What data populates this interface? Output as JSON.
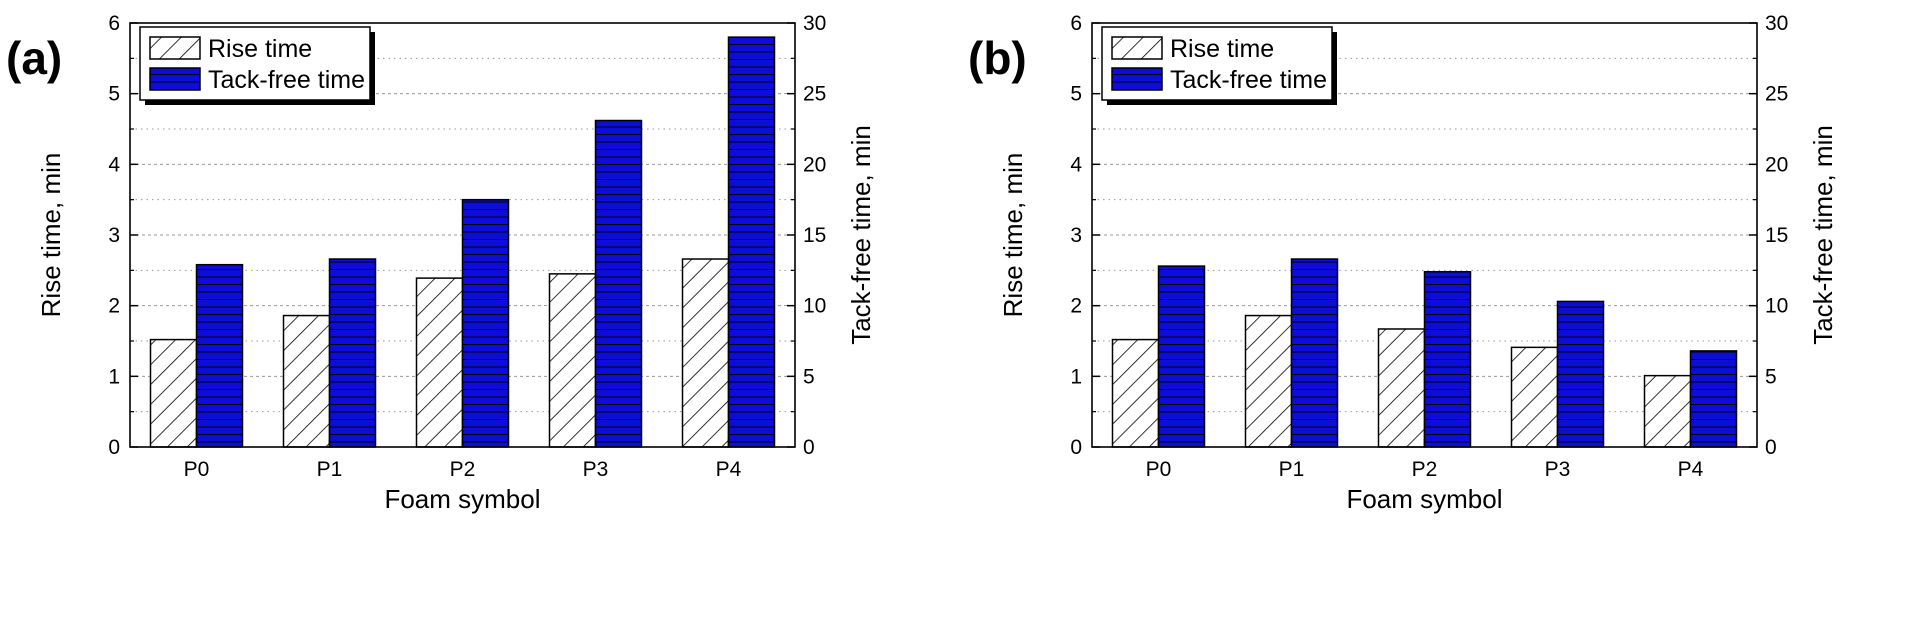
{
  "chart_data": [
    {
      "type": "bar",
      "panel_label": "(a)",
      "categories": [
        "P0",
        "P1",
        "P2",
        "P3",
        "P4"
      ],
      "series": [
        {
          "name": "Rise time",
          "axis": "left",
          "fill": "hatch",
          "values": [
            1.52,
            1.86,
            2.39,
            2.45,
            2.66
          ]
        },
        {
          "name": "Tack-free time",
          "axis": "right",
          "fill": "#0d0dd9",
          "values": [
            12.9,
            13.3,
            17.5,
            23.1,
            29.0
          ]
        }
      ],
      "xlabel": "Foam symbol",
      "ylabel": "Rise time, min",
      "y2label": "Tack-free time, min",
      "ylim": [
        0,
        6
      ],
      "y2lim": [
        0,
        30
      ],
      "yticks": [
        "0",
        "1",
        "2",
        "3",
        "4",
        "5",
        "6"
      ],
      "y2ticks": [
        "0",
        "5",
        "10",
        "15",
        "20",
        "25",
        "30"
      ],
      "grid": true,
      "legend_position": "top-left"
    },
    {
      "type": "bar",
      "panel_label": "(b)",
      "categories": [
        "P0",
        "P1",
        "P2",
        "P3",
        "P4"
      ],
      "series": [
        {
          "name": "Rise time",
          "axis": "left",
          "fill": "hatch",
          "values": [
            1.52,
            1.86,
            1.67,
            1.41,
            1.01
          ]
        },
        {
          "name": "Tack-free time",
          "axis": "right",
          "fill": "#0d0dd9",
          "values": [
            12.8,
            13.3,
            12.4,
            10.3,
            6.8
          ]
        }
      ],
      "xlabel": "Foam symbol",
      "ylabel": "Rise time, min",
      "y2label": "Tack-free time, min",
      "ylim": [
        0,
        6
      ],
      "y2lim": [
        0,
        30
      ],
      "yticks": [
        "0",
        "1",
        "2",
        "3",
        "4",
        "5",
        "6"
      ],
      "y2ticks": [
        "0",
        "5",
        "10",
        "15",
        "20",
        "25",
        "30"
      ],
      "grid": true,
      "legend_position": "top-left"
    }
  ]
}
